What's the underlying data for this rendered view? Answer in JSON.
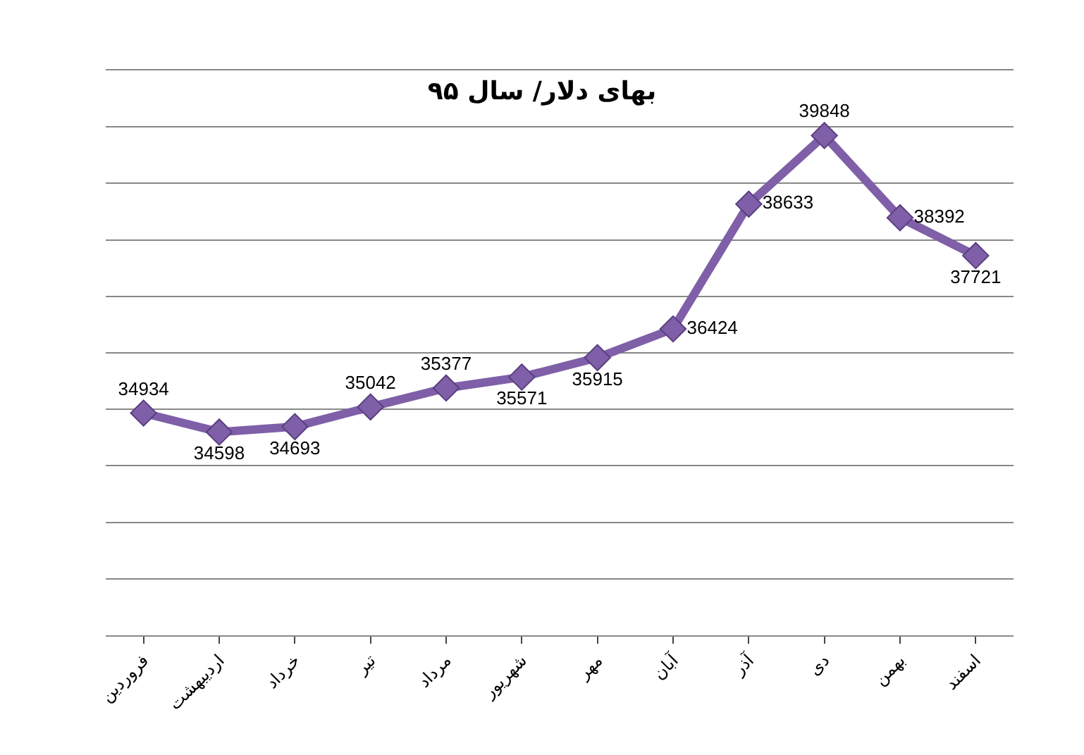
{
  "chart_data": {
    "type": "line",
    "title": "بهای دلار/ سال ۹۵",
    "categories": [
      "فروردین",
      "اردیبهشت",
      "خرداد",
      "تیر",
      "مرداد",
      "شهریور",
      "مهر",
      "آبان",
      "آذر",
      "دی",
      "بهمن",
      "اسفند"
    ],
    "series": [
      {
        "color": "#7f5fa8",
        "values": [
          34934,
          34598,
          34693,
          35042,
          35377,
          35571,
          35915,
          36424,
          38633,
          39848,
          38392,
          37721
        ]
      }
    ],
    "ylim": [
      31000,
      41000
    ],
    "yticks": [
      {
        "value": 31000,
        "label": null
      },
      {
        "value": 32000,
        "label": null
      },
      {
        "value": 33000,
        "label": null
      },
      {
        "value": 34000,
        "label": null
      },
      {
        "value": 35000,
        "label": null
      },
      {
        "value": 36000,
        "label": null
      },
      {
        "value": 37000,
        "label": null
      },
      {
        "value": 38000,
        "label": null
      },
      {
        "value": 39000,
        "label": null
      },
      {
        "value": 40000,
        "label": null
      }
    ],
    "tick_labels": "x",
    "grid": "y",
    "marker": "diamond",
    "line_style": "solid",
    "data_labels": true,
    "legend": false
  }
}
